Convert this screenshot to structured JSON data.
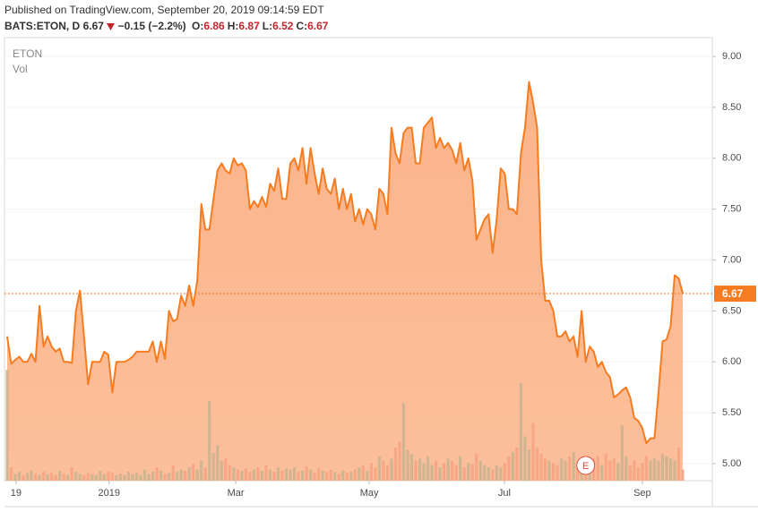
{
  "chart_data": {
    "type": "area",
    "title": "Published on TradingView.com, September 20, 2019 09:14:59 EDT",
    "symbol": "BATS:ETON, D",
    "price": 6.67,
    "change": "−0.15 (−2.2%)",
    "ohlc": [
      {
        "label": "O:",
        "value": 6.86
      },
      {
        "label": "H:",
        "value": 6.87
      },
      {
        "label": "L:",
        "value": 6.52
      },
      {
        "label": "C:",
        "value": 6.67
      }
    ],
    "series": [
      {
        "name": "ETON",
        "color": "#f57c20",
        "fill": "#fbb48a",
        "values": [
          6.25,
          5.98,
          6.02,
          6.05,
          6.0,
          6.0,
          6.08,
          6.0,
          6.55,
          6.15,
          6.25,
          6.15,
          6.1,
          6.13,
          6.0,
          6.0,
          5.99,
          6.5,
          6.7,
          6.25,
          5.78,
          6.0,
          6.0,
          6.0,
          6.1,
          6.07,
          5.7,
          6.0,
          6.0,
          6.0,
          6.02,
          6.05,
          6.1,
          6.1,
          6.1,
          6.1,
          6.2,
          6.0,
          6.2,
          6.03,
          6.5,
          6.4,
          6.42,
          6.65,
          6.55,
          6.75,
          6.55,
          6.8,
          7.55,
          7.3,
          7.3,
          7.6,
          7.88,
          7.95,
          7.88,
          7.85,
          8.0,
          7.93,
          7.95,
          7.88,
          7.5,
          7.58,
          7.52,
          7.62,
          7.52,
          7.75,
          7.68,
          7.9,
          7.6,
          7.6,
          7.95,
          8.0,
          7.88,
          8.1,
          7.75,
          8.1,
          7.85,
          7.65,
          7.9,
          7.7,
          7.65,
          7.8,
          7.5,
          7.7,
          7.5,
          7.65,
          7.38,
          7.5,
          7.35,
          7.5,
          7.45,
          7.3,
          7.7,
          7.65,
          7.45,
          8.3,
          8.05,
          7.95,
          8.25,
          8.3,
          8.3,
          7.95,
          7.95,
          8.3,
          8.35,
          8.4,
          8.1,
          8.2,
          8.1,
          8.15,
          8.08,
          7.95,
          8.15,
          7.88,
          8.0,
          7.78,
          7.2,
          7.3,
          7.4,
          7.45,
          7.07,
          7.4,
          7.9,
          7.85,
          7.5,
          7.5,
          7.45,
          8.05,
          8.3,
          8.75,
          8.55,
          8.3,
          7.0,
          6.6,
          6.6,
          6.5,
          6.25,
          6.25,
          6.3,
          6.2,
          6.25,
          6.05,
          6.5,
          6.0,
          6.15,
          6.1,
          5.95,
          6.0,
          5.9,
          5.85,
          5.65,
          5.68,
          5.72,
          5.75,
          5.65,
          5.45,
          5.42,
          5.35,
          5.2,
          5.25,
          5.25,
          5.7,
          6.2,
          6.22,
          6.35,
          6.85,
          6.82,
          6.67
        ]
      },
      {
        "name": "Vol",
        "axis": "y2",
        "colors": {
          "up": "#c9b38f",
          "down": "#f6a283"
        },
        "values": [
          100,
          12,
          6,
          8,
          5,
          7,
          9,
          6,
          5,
          8,
          6,
          7,
          5,
          9,
          6,
          5,
          12,
          8,
          6,
          5,
          7,
          6,
          5,
          9,
          6,
          8,
          7,
          5,
          6,
          5,
          8,
          6,
          7,
          5,
          10,
          6,
          8,
          12,
          9,
          6,
          7,
          14,
          8,
          10,
          9,
          12,
          15,
          10,
          18,
          12,
          72,
          25,
          32,
          18,
          20,
          14,
          12,
          10,
          9,
          11,
          8,
          10,
          12,
          9,
          14,
          10,
          8,
          12,
          9,
          11,
          10,
          12,
          8,
          9,
          13,
          10,
          7,
          11,
          9,
          8,
          10,
          8,
          6,
          9,
          7,
          8,
          10,
          12,
          14,
          9,
          16,
          12,
          22,
          18,
          14,
          20,
          30,
          35,
          70,
          28,
          24,
          18,
          20,
          16,
          22,
          14,
          18,
          12,
          16,
          20,
          18,
          14,
          22,
          12,
          16,
          15,
          24,
          18,
          14,
          12,
          10,
          14,
          12,
          16,
          22,
          26,
          30,
          88,
          40,
          28,
          52,
          30,
          24,
          20,
          18,
          16,
          14,
          20,
          18,
          22,
          26,
          14,
          18,
          12,
          16,
          20,
          22,
          14,
          24,
          18,
          20,
          16,
          50,
          22,
          14,
          18,
          12,
          16,
          22,
          18,
          20,
          18,
          24,
          22,
          20,
          18,
          30,
          10
        ]
      }
    ],
    "xlim": [
      -0.66,
      174.3
    ],
    "xticks": [
      {
        "value": 2.2,
        "label": "19"
      },
      {
        "value": 25.2,
        "label": "2019"
      },
      {
        "value": 56.5,
        "label": "Mar"
      },
      {
        "value": 89.5,
        "label": "May"
      },
      {
        "value": 122.9,
        "label": "Jul"
      },
      {
        "value": 157.0,
        "label": "Sep"
      }
    ],
    "ylim": [
      4.833,
      9.185
    ],
    "yticks": [
      {
        "value": 5,
        "label": "5.00"
      },
      {
        "value": 5.5,
        "label": "5.50"
      },
      {
        "value": 6,
        "label": "6.00"
      },
      {
        "value": 6.5,
        "label": "6.50"
      },
      {
        "value": 7,
        "label": "7.00"
      },
      {
        "value": 7.5,
        "label": "7.50"
      },
      {
        "value": 8,
        "label": "8.00"
      },
      {
        "value": 8.5,
        "label": "8.50"
      },
      {
        "value": 9,
        "label": "9.00"
      }
    ],
    "y2lim": [
      0,
      400
    ],
    "grid": true,
    "last_price": 6.67,
    "events": [
      {
        "label": "E",
        "x": 143
      }
    ]
  }
}
